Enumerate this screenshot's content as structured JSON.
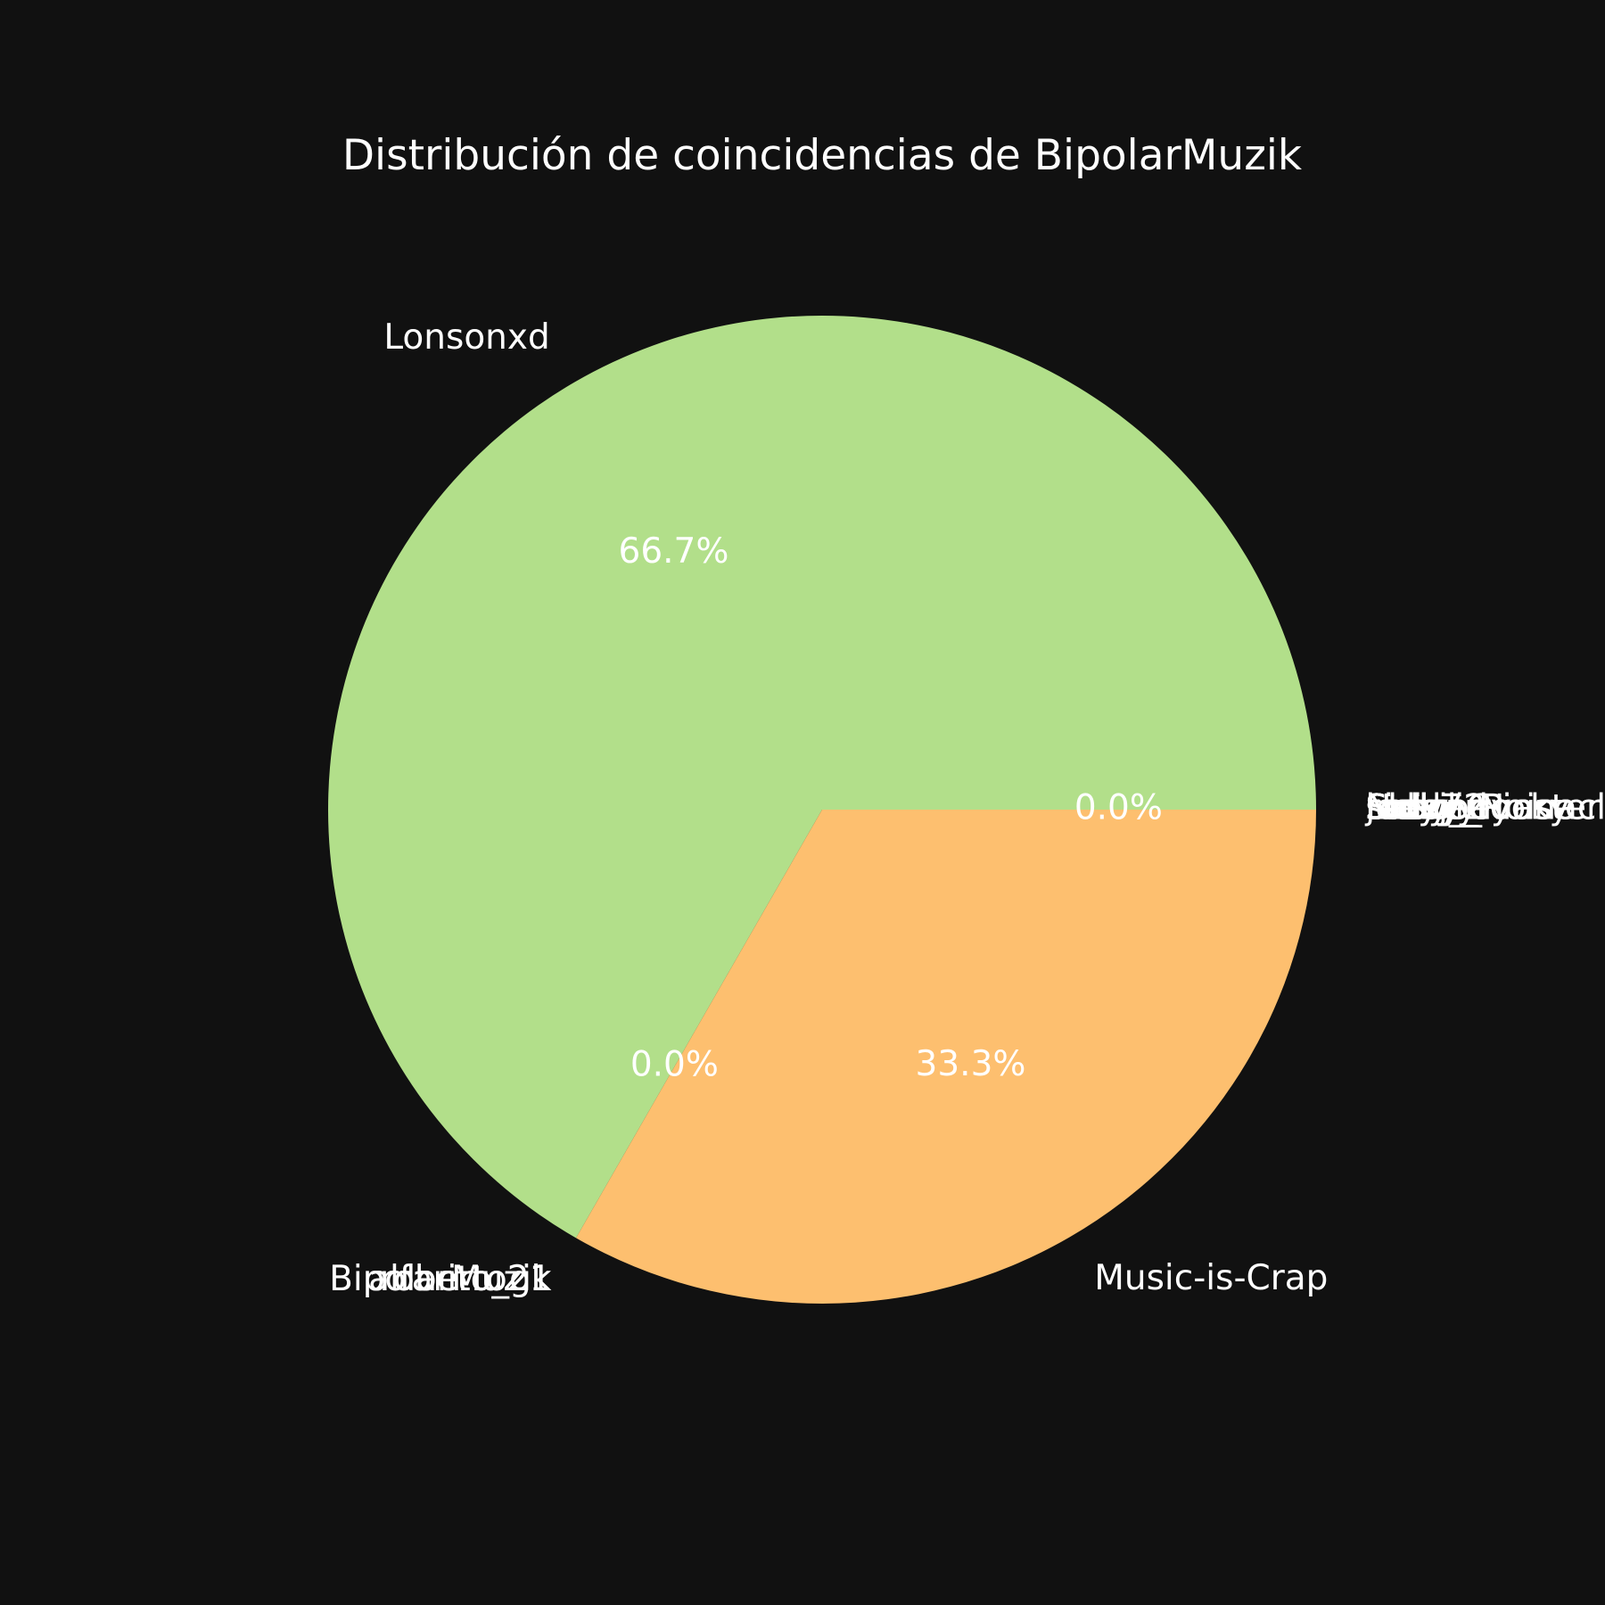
{
  "chart_data": {
    "type": "pie",
    "title": "Distribución de coincidencias de BipolarMuzik",
    "start_angle_deg": 0,
    "direction": "counterclockwise",
    "slices": [
      {
        "label": "Lonsonxd",
        "value": 66.7,
        "pct_label": "66.7%",
        "color": "#b2df8a"
      },
      {
        "label": "BipolarMuzik",
        "value": 0,
        "pct_label": "0.0%",
        "color": "#b2df8a"
      },
      {
        "label": "alfarito_gk",
        "value": 0,
        "pct_label": "",
        "color": "#b2df8a"
      },
      {
        "label": "roberto21",
        "value": 0,
        "pct_label": "",
        "color": "#b2df8a"
      },
      {
        "label": "Music-is-Crap",
        "value": 33.3,
        "pct_label": "33.3%",
        "color": "#fdbf6f"
      }
    ],
    "overlapping_zero_labels_right": [
      "Sidd72",
      "Slowly",
      "Lubo",
      "rocky_rocky",
      "Noisy_Noise",
      "joeyjoey",
      "Steve_Pinnacle",
      "Lady_Coaster",
      "sickgirl"
    ],
    "overlapping_zero_pct_label": "0.0%"
  }
}
